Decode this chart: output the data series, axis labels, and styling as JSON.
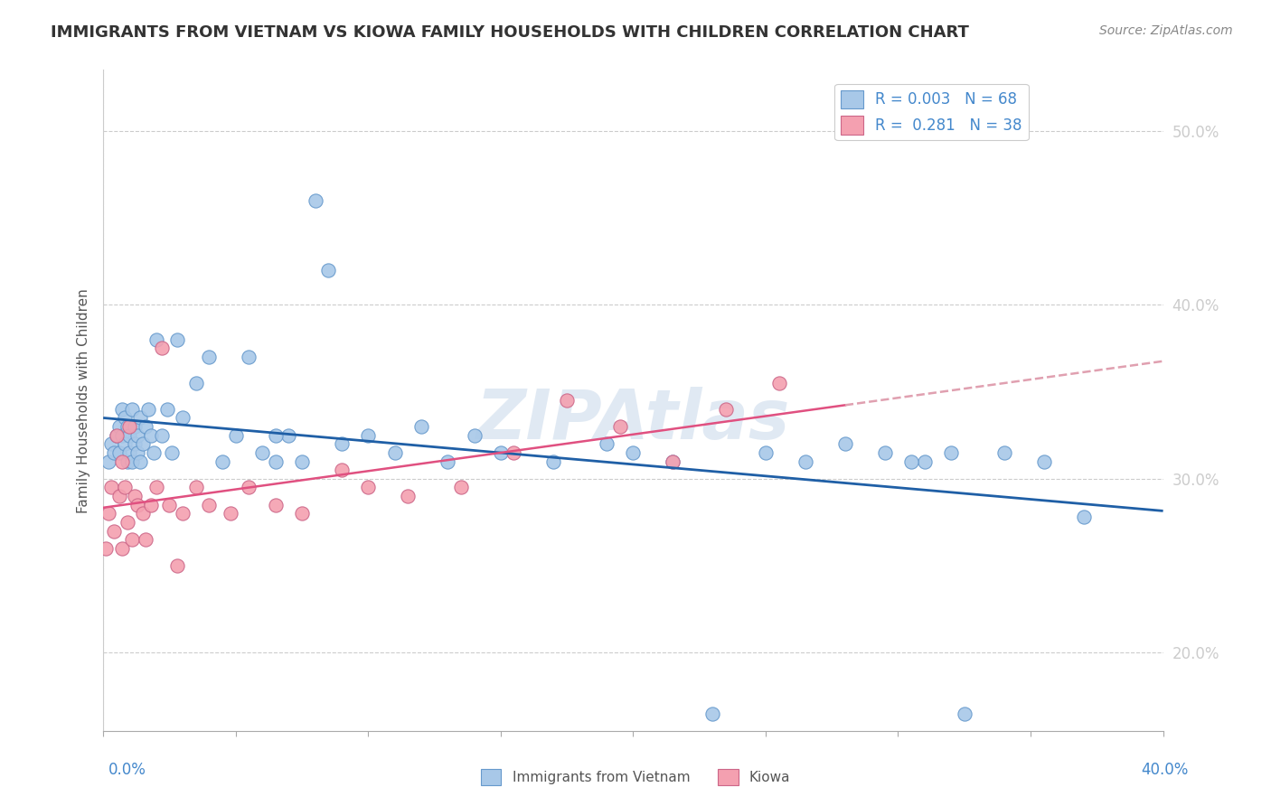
{
  "title": "IMMIGRANTS FROM VIETNAM VS KIOWA FAMILY HOUSEHOLDS WITH CHILDREN CORRELATION CHART",
  "source": "Source: ZipAtlas.com",
  "ylabel": "Family Households with Children",
  "yticks_labels": [
    "50.0%",
    "40.0%",
    "30.0%",
    "20.0%"
  ],
  "ytick_vals": [
    0.5,
    0.4,
    0.3,
    0.2
  ],
  "xlim": [
    0.0,
    0.4
  ],
  "ylim": [
    0.155,
    0.535
  ],
  "legend_r1": "R = 0.003",
  "legend_n1": "N = 68",
  "legend_r2": "R =  0.281",
  "legend_n2": "N = 38",
  "blue_color": "#a8c8e8",
  "pink_color": "#f4a0b0",
  "blue_line_color": "#1f5fa6",
  "pink_line_color": "#e05080",
  "pink_dash_color": "#e0a0b0",
  "watermark": "ZIPAtlas",
  "blue_dots_x": [
    0.002,
    0.003,
    0.004,
    0.005,
    0.006,
    0.006,
    0.007,
    0.007,
    0.008,
    0.008,
    0.009,
    0.009,
    0.01,
    0.01,
    0.011,
    0.011,
    0.012,
    0.012,
    0.013,
    0.013,
    0.014,
    0.014,
    0.015,
    0.016,
    0.017,
    0.018,
    0.019,
    0.02,
    0.022,
    0.024,
    0.026,
    0.028,
    0.03,
    0.035,
    0.04,
    0.045,
    0.05,
    0.055,
    0.06,
    0.065,
    0.07,
    0.08,
    0.09,
    0.1,
    0.11,
    0.12,
    0.13,
    0.14,
    0.15,
    0.17,
    0.19,
    0.2,
    0.215,
    0.23,
    0.25,
    0.265,
    0.28,
    0.295,
    0.31,
    0.325,
    0.34,
    0.355,
    0.37,
    0.065,
    0.075,
    0.085,
    0.305,
    0.32
  ],
  "blue_dots_y": [
    0.31,
    0.32,
    0.315,
    0.325,
    0.33,
    0.315,
    0.325,
    0.34,
    0.335,
    0.32,
    0.31,
    0.33,
    0.325,
    0.315,
    0.34,
    0.31,
    0.33,
    0.32,
    0.315,
    0.325,
    0.31,
    0.335,
    0.32,
    0.33,
    0.34,
    0.325,
    0.315,
    0.38,
    0.325,
    0.34,
    0.315,
    0.38,
    0.335,
    0.355,
    0.37,
    0.31,
    0.325,
    0.37,
    0.315,
    0.31,
    0.325,
    0.46,
    0.32,
    0.325,
    0.315,
    0.33,
    0.31,
    0.325,
    0.315,
    0.31,
    0.32,
    0.315,
    0.31,
    0.165,
    0.315,
    0.31,
    0.32,
    0.315,
    0.31,
    0.165,
    0.315,
    0.31,
    0.278,
    0.325,
    0.31,
    0.42,
    0.31,
    0.315
  ],
  "pink_dots_x": [
    0.001,
    0.002,
    0.003,
    0.004,
    0.005,
    0.006,
    0.007,
    0.007,
    0.008,
    0.009,
    0.01,
    0.011,
    0.012,
    0.013,
    0.015,
    0.016,
    0.018,
    0.02,
    0.022,
    0.025,
    0.028,
    0.03,
    0.035,
    0.04,
    0.048,
    0.055,
    0.065,
    0.075,
    0.09,
    0.1,
    0.115,
    0.135,
    0.155,
    0.175,
    0.195,
    0.215,
    0.235,
    0.255
  ],
  "pink_dots_y": [
    0.26,
    0.28,
    0.295,
    0.27,
    0.325,
    0.29,
    0.26,
    0.31,
    0.295,
    0.275,
    0.33,
    0.265,
    0.29,
    0.285,
    0.28,
    0.265,
    0.285,
    0.295,
    0.375,
    0.285,
    0.25,
    0.28,
    0.295,
    0.285,
    0.28,
    0.295,
    0.285,
    0.28,
    0.305,
    0.295,
    0.29,
    0.295,
    0.315,
    0.345,
    0.33,
    0.31,
    0.34,
    0.355
  ]
}
